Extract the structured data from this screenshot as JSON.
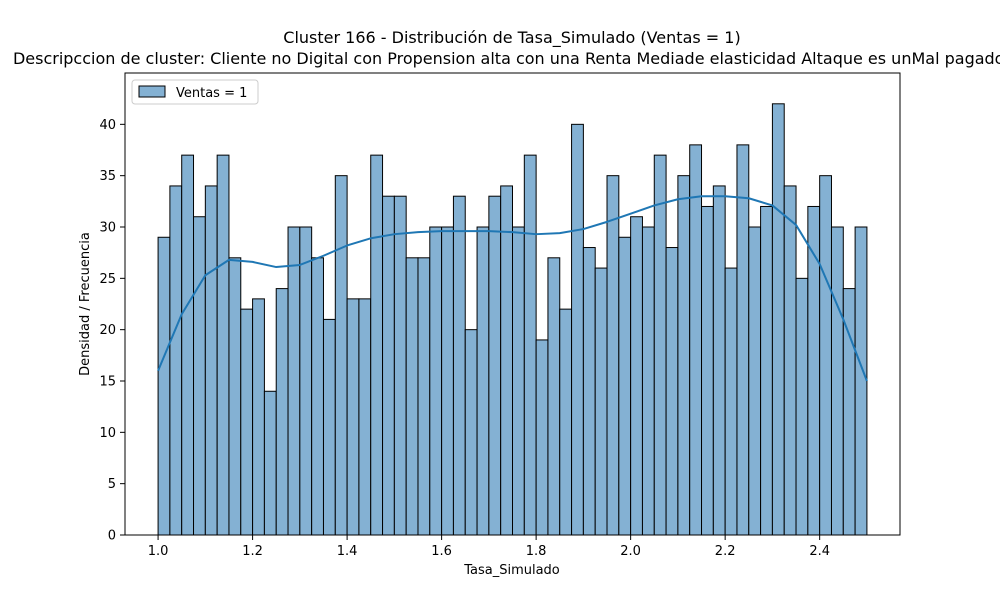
{
  "chart_data": {
    "type": "bar",
    "title": "Cluster 166 - Distribución de Tasa_Simulado (Ventas = 1)",
    "subtitle": "Descripccion de cluster: Cliente no Digital con Propension alta con una Renta Mediade elasticidad Altaque es unMal pagador",
    "xlabel": "Tasa_Simulado",
    "ylabel": "Densidad / Frecuencia",
    "xlim": [
      0.93,
      2.57
    ],
    "ylim": [
      0,
      45
    ],
    "xticks": [
      1.0,
      1.2,
      1.4,
      1.6,
      1.8,
      2.0,
      2.2,
      2.4
    ],
    "xtick_labels": [
      "1.0",
      "1.2",
      "1.4",
      "1.6",
      "1.8",
      "2.0",
      "2.2",
      "2.4"
    ],
    "yticks": [
      0,
      5,
      10,
      15,
      20,
      25,
      30,
      35,
      40
    ],
    "ytick_labels": [
      "0",
      "5",
      "10",
      "15",
      "20",
      "25",
      "30",
      "35",
      "40"
    ],
    "bin_start": 1.0,
    "bin_end": 2.5,
    "bin_values": [
      29,
      34,
      37,
      31,
      34,
      37,
      27,
      22,
      23,
      14,
      24,
      30,
      30,
      27,
      21,
      35,
      23,
      23,
      37,
      33,
      33,
      27,
      27,
      30,
      30,
      33,
      20,
      30,
      33,
      34,
      30,
      37,
      19,
      27,
      22,
      40,
      28,
      26,
      35,
      29,
      31,
      30,
      37,
      28,
      35,
      38,
      32,
      34,
      26,
      38,
      30,
      32,
      42,
      34,
      25,
      32,
      35,
      30,
      24,
      30
    ],
    "kde_x": [
      1.0,
      1.05,
      1.1,
      1.15,
      1.2,
      1.25,
      1.3,
      1.35,
      1.4,
      1.45,
      1.5,
      1.55,
      1.6,
      1.65,
      1.7,
      1.75,
      1.8,
      1.85,
      1.9,
      1.95,
      2.0,
      2.05,
      2.1,
      2.15,
      2.2,
      2.25,
      2.3,
      2.35,
      2.4,
      2.45,
      2.5
    ],
    "kde_y": [
      16.0,
      21.5,
      25.3,
      26.8,
      26.6,
      26.1,
      26.3,
      27.2,
      28.2,
      28.9,
      29.3,
      29.5,
      29.6,
      29.6,
      29.6,
      29.5,
      29.3,
      29.4,
      29.8,
      30.5,
      31.3,
      32.1,
      32.7,
      33.0,
      33.0,
      32.8,
      32.1,
      30.2,
      26.4,
      21.0,
      15.0
    ],
    "series": [
      {
        "name": "Ventas = 1"
      }
    ],
    "legend_position": "top-left",
    "bar_color": "#84b1d3",
    "bar_edge_color": "#000000",
    "line_color": "#1f77b4"
  }
}
